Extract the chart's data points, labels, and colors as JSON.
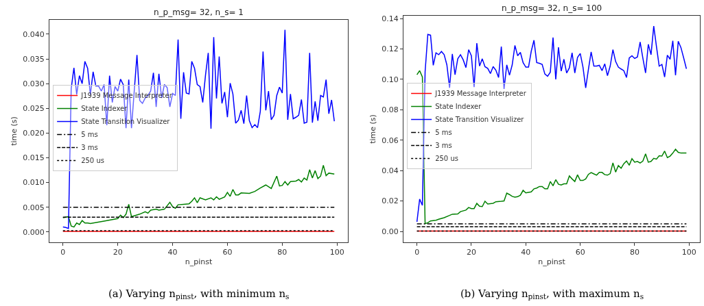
{
  "chart_data": [
    {
      "type": "line",
      "title": "n_p_msg= 32, n_s= 1",
      "xlabel": "n_pinst",
      "ylabel": "time (s)",
      "legend": "center left",
      "xlim": [
        -4.95,
        103.95
      ],
      "xticks": [
        0,
        20,
        40,
        60,
        80,
        100
      ],
      "ylim": [
        -0.0021,
        0.0429
      ],
      "yticks": [
        {
          "value": 0,
          "label": "0.000"
        },
        {
          "value": 0.005,
          "label": "0.005"
        },
        {
          "value": 0.01,
          "label": "0.010"
        },
        {
          "value": 0.015,
          "label": "0.015"
        },
        {
          "value": 0.02,
          "label": "0.020"
        },
        {
          "value": 0.025,
          "label": "0.025"
        },
        {
          "value": 0.03,
          "label": "0.030"
        },
        {
          "value": 0.035,
          "label": "0.035"
        },
        {
          "value": 0.04,
          "label": "0.040"
        }
      ],
      "annotations": [
        "(a) Varying n$_{pinst}$, with minimum n$_{s}$"
      ],
      "x": [
        0,
        1,
        2,
        3,
        4,
        5,
        6,
        7,
        8,
        9,
        10,
        11,
        12,
        13,
        14,
        15,
        16,
        17,
        18,
        19,
        20,
        21,
        22,
        23,
        24,
        25,
        26,
        27,
        28,
        29,
        30,
        31,
        32,
        33,
        34,
        35,
        36,
        37,
        38,
        39,
        40,
        41,
        42,
        43,
        44,
        45,
        46,
        47,
        48,
        49,
        50,
        51,
        52,
        53,
        54,
        55,
        56,
        57,
        58,
        59,
        60,
        61,
        62,
        63,
        64,
        65,
        66,
        67,
        68,
        69,
        70,
        71,
        72,
        73,
        74,
        75,
        76,
        77,
        78,
        79,
        80,
        81,
        82,
        83,
        84,
        85,
        86,
        87,
        88,
        89,
        90,
        91,
        92,
        93,
        94,
        95,
        96,
        97,
        98,
        99
      ],
      "series": [
        {
          "name": "J1939 Message Interpreter",
          "color": "#ff0000",
          "line_style": "solid",
          "x": [
            0,
            99
          ],
          "values": [
            0.0001,
            0.0001
          ]
        },
        {
          "name": "State Indexer",
          "color": "#008000",
          "line_style": "solid",
          "x": [
            0,
            1,
            2,
            3,
            4,
            5,
            6,
            7,
            8,
            9,
            10,
            15,
            20,
            21,
            22,
            23,
            24,
            25,
            28,
            30,
            31,
            32,
            34,
            35,
            37,
            39,
            40,
            41,
            42,
            44,
            46,
            47,
            48,
            49,
            50,
            52,
            54,
            55,
            56,
            57,
            59,
            60,
            61,
            62,
            63,
            64,
            65,
            68,
            70,
            72,
            74,
            76,
            78,
            79,
            80,
            81,
            82,
            83,
            85,
            86,
            87,
            88,
            89,
            90,
            91,
            92,
            93,
            94,
            95,
            96,
            97,
            99
          ],
          "values": [
            0.0029,
            0.003,
            0.0031,
            0.0012,
            0.001,
            0.0018,
            0.0015,
            0.0023,
            0.0018,
            0.0018,
            0.0017,
            0.0022,
            0.0027,
            0.0034,
            0.0029,
            0.0036,
            0.0056,
            0.0031,
            0.0036,
            0.0041,
            0.0038,
            0.0044,
            0.0046,
            0.0044,
            0.0046,
            0.006,
            0.0051,
            0.0048,
            0.0055,
            0.0056,
            0.0057,
            0.0062,
            0.0069,
            0.0059,
            0.0069,
            0.0065,
            0.0069,
            0.0065,
            0.0071,
            0.0066,
            0.0071,
            0.008,
            0.0072,
            0.0086,
            0.0075,
            0.0075,
            0.0079,
            0.0078,
            0.0082,
            0.0089,
            0.0095,
            0.0088,
            0.0113,
            0.0093,
            0.0094,
            0.0102,
            0.0095,
            0.0102,
            0.0103,
            0.0106,
            0.0101,
            0.0109,
            0.0105,
            0.0126,
            0.0109,
            0.0124,
            0.0108,
            0.0113,
            0.0135,
            0.0114,
            0.0119,
            0.0117
          ]
        },
        {
          "name": "State Transition Visualizer",
          "color": "#0000ff",
          "line_style": "solid",
          "values": [
            0.001,
            0.0009,
            0.0007,
            0.029,
            0.0332,
            0.0278,
            0.0316,
            0.03,
            0.0345,
            0.0331,
            0.0278,
            0.0324,
            0.0295,
            0.0295,
            0.0285,
            0.0298,
            0.0216,
            0.0316,
            0.0262,
            0.0294,
            0.0285,
            0.0309,
            0.0298,
            0.021,
            0.0308,
            0.021,
            0.0285,
            0.0358,
            0.0266,
            0.026,
            0.0271,
            0.0276,
            0.0285,
            0.0322,
            0.0253,
            0.032,
            0.0271,
            0.0298,
            0.0292,
            0.0253,
            0.028,
            0.0276,
            0.0389,
            0.0229,
            0.0323,
            0.0281,
            0.0279,
            0.0345,
            0.0331,
            0.0298,
            0.0294,
            0.0262,
            0.0317,
            0.0362,
            0.0209,
            0.0394,
            0.027,
            0.0355,
            0.026,
            0.0283,
            0.0232,
            0.0301,
            0.0279,
            0.022,
            0.0226,
            0.0246,
            0.0219,
            0.0276,
            0.0225,
            0.0211,
            0.0217,
            0.0211,
            0.0244,
            0.0365,
            0.0246,
            0.0285,
            0.0227,
            0.0236,
            0.0276,
            0.0293,
            0.0281,
            0.0409,
            0.0227,
            0.0279,
            0.0229,
            0.0232,
            0.0236,
            0.0268,
            0.022,
            0.0222,
            0.0362,
            0.0221,
            0.0264,
            0.0225,
            0.0276,
            0.0273,
            0.0308,
            0.0239,
            0.0267,
            0.0224
          ]
        },
        {
          "name": "5 ms",
          "color": "#000000",
          "line_style": "dashdot",
          "x": [
            0,
            99
          ],
          "values": [
            0.005,
            0.005
          ]
        },
        {
          "name": "3 ms",
          "color": "#000000",
          "line_style": "dashed",
          "x": [
            0,
            99
          ],
          "values": [
            0.003,
            0.003
          ]
        },
        {
          "name": "250 us",
          "color": "#000000",
          "line_style": "dotted",
          "x": [
            0,
            99
          ],
          "values": [
            0.00025,
            0.00025
          ]
        }
      ]
    },
    {
      "type": "line",
      "title": "n_p_msg= 32, n_s= 100",
      "xlabel": "n_pinst",
      "ylabel": "time (s)",
      "legend": "center left",
      "xlim": [
        -4.95,
        103.95
      ],
      "xticks": [
        0,
        20,
        40,
        60,
        80,
        100
      ],
      "ylim": [
        -0.0072,
        0.1418
      ],
      "yticks": [
        {
          "value": 0,
          "label": "0.00"
        },
        {
          "value": 0.02,
          "label": "0.02"
        },
        {
          "value": 0.04,
          "label": "0.04"
        },
        {
          "value": 0.06,
          "label": "0.06"
        },
        {
          "value": 0.08,
          "label": "0.08"
        },
        {
          "value": 0.1,
          "label": "0.10"
        },
        {
          "value": 0.12,
          "label": "0.12"
        },
        {
          "value": 0.14,
          "label": "0.14"
        }
      ],
      "annotations": [
        "(b) Varying n$_{pinst}$, with maximum n$_{s}$"
      ],
      "x": [
        0,
        1,
        2,
        3,
        4,
        5,
        6,
        7,
        8,
        9,
        10,
        11,
        12,
        13,
        14,
        15,
        16,
        17,
        18,
        19,
        20,
        21,
        22,
        23,
        24,
        25,
        26,
        27,
        28,
        29,
        30,
        31,
        32,
        33,
        34,
        35,
        36,
        37,
        38,
        39,
        40,
        41,
        42,
        43,
        44,
        45,
        46,
        47,
        48,
        49,
        50,
        51,
        52,
        53,
        54,
        55,
        56,
        57,
        58,
        59,
        60,
        61,
        62,
        63,
        64,
        65,
        66,
        67,
        68,
        69,
        70,
        71,
        72,
        73,
        74,
        75,
        76,
        77,
        78,
        79,
        80,
        81,
        82,
        83,
        84,
        85,
        86,
        87,
        88,
        89,
        90,
        91,
        92,
        93,
        94,
        95,
        96,
        97,
        98,
        99
      ],
      "series": [
        {
          "name": "J1939 Message Interpreter",
          "color": "#ff0000",
          "line_style": "solid",
          "x": [
            0,
            99
          ],
          "values": [
            0.0002,
            0.0002
          ]
        },
        {
          "name": "State Indexer",
          "color": "#008000",
          "line_style": "solid",
          "x": [
            0,
            1,
            2,
            3,
            4,
            5,
            7,
            8,
            10,
            12,
            13,
            15,
            16,
            18,
            19,
            20,
            21,
            22,
            23,
            24,
            25,
            26,
            28,
            29,
            31,
            32,
            33,
            34,
            35,
            36,
            37,
            38,
            39,
            40,
            42,
            43,
            44,
            45,
            46,
            47,
            48,
            49,
            50,
            51,
            52,
            53,
            54,
            55,
            56,
            57,
            58,
            59,
            60,
            61,
            62,
            63,
            64,
            65,
            66,
            67,
            68,
            69,
            70,
            71,
            72,
            73,
            74,
            75,
            76,
            77,
            78,
            79,
            80,
            81,
            82,
            83,
            84,
            85,
            86,
            87,
            88,
            89,
            90,
            91,
            92,
            93,
            94,
            95,
            96,
            97,
            99
          ],
          "values": [
            0.103,
            0.1057,
            0.1015,
            0.0051,
            0.0057,
            0.0069,
            0.0073,
            0.008,
            0.009,
            0.0105,
            0.0113,
            0.0115,
            0.013,
            0.014,
            0.0157,
            0.015,
            0.015,
            0.0184,
            0.0165,
            0.0163,
            0.0198,
            0.018,
            0.0185,
            0.0195,
            0.0198,
            0.02,
            0.0252,
            0.0242,
            0.023,
            0.0225,
            0.0228,
            0.0238,
            0.027,
            0.0253,
            0.026,
            0.028,
            0.0285,
            0.0295,
            0.0295,
            0.028,
            0.028,
            0.0328,
            0.03,
            0.034,
            0.031,
            0.0305,
            0.0313,
            0.0313,
            0.0365,
            0.0345,
            0.0328,
            0.0372,
            0.0335,
            0.0335,
            0.0345,
            0.0375,
            0.0387,
            0.0378,
            0.037,
            0.0388,
            0.0388,
            0.0373,
            0.037,
            0.038,
            0.045,
            0.039,
            0.0433,
            0.0415,
            0.0445,
            0.0463,
            0.0435,
            0.0478,
            0.0455,
            0.046,
            0.045,
            0.0462,
            0.051,
            0.0455,
            0.046,
            0.048,
            0.0475,
            0.0497,
            0.0495,
            0.0528,
            0.0485,
            0.0495,
            0.0515,
            0.054,
            0.052,
            0.0515,
            0.0515
          ]
        },
        {
          "name": "State Transition Visualizer",
          "color": "#0000ff",
          "line_style": "solid",
          "values": [
            0.0063,
            0.0212,
            0.0171,
            0.105,
            0.1295,
            0.129,
            0.1092,
            0.1174,
            0.1162,
            0.1183,
            0.1162,
            0.1095,
            0.0944,
            0.1167,
            0.103,
            0.1135,
            0.1162,
            0.1128,
            0.1077,
            0.1195,
            0.1155,
            0.0949,
            0.1238,
            0.1087,
            0.1135,
            0.1083,
            0.1072,
            0.1038,
            0.1084,
            0.106,
            0.1012,
            0.1215,
            0.0937,
            0.1095,
            0.1027,
            0.1095,
            0.1223,
            0.1155,
            0.1177,
            0.111,
            0.108,
            0.108,
            0.1185,
            0.1257,
            0.111,
            0.1105,
            0.1098,
            0.1035,
            0.102,
            0.1047,
            0.1275,
            0.1,
            0.1211,
            0.1054,
            0.1132,
            0.1042,
            0.1075,
            0.1174,
            0.1042,
            0.1144,
            0.117,
            0.108,
            0.0944,
            0.1065,
            0.118,
            0.1087,
            0.1087,
            0.1092,
            0.1057,
            0.1102,
            0.1024,
            0.1087,
            0.1195,
            0.1117,
            0.108,
            0.1068,
            0.1057,
            0.1012,
            0.114,
            0.1155,
            0.1137,
            0.1147,
            0.1245,
            0.114,
            0.1042,
            0.123,
            0.1162,
            0.135,
            0.1215,
            0.1087,
            0.1098,
            0.1015,
            0.1159,
            0.1132,
            0.1253,
            0.1027,
            0.125,
            0.1208,
            0.114,
            0.1069
          ]
        },
        {
          "name": "5 ms",
          "color": "#000000",
          "line_style": "dashdot",
          "x": [
            0,
            99
          ],
          "values": [
            0.005,
            0.005
          ]
        },
        {
          "name": "3 ms",
          "color": "#000000",
          "line_style": "dashed",
          "x": [
            0,
            99
          ],
          "values": [
            0.003,
            0.003
          ]
        },
        {
          "name": "250 us",
          "color": "#000000",
          "line_style": "dotted",
          "x": [
            0,
            99
          ],
          "values": [
            0.00025,
            0.00025
          ]
        }
      ]
    }
  ]
}
